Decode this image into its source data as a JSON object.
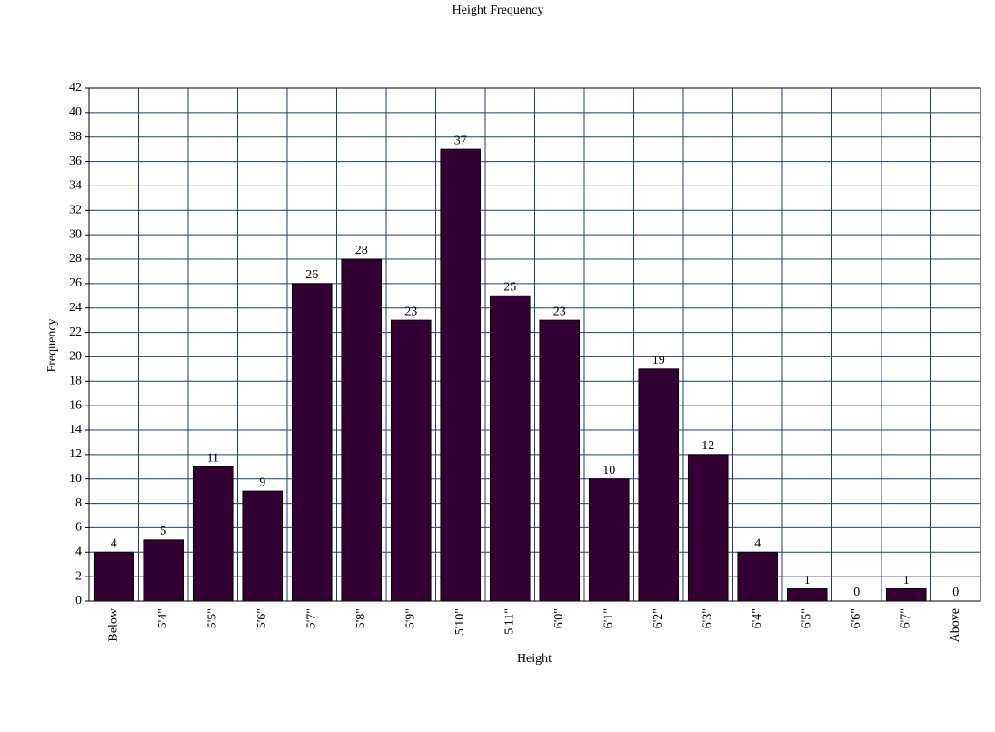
{
  "chart_data": {
    "type": "bar",
    "title": "Height Frequency",
    "x_label": "Height",
    "y_label": "Frequency",
    "categories": [
      "Below",
      "5'4\"",
      "5'5\"",
      "5'6\"",
      "5'7\"",
      "5'8\"",
      "5'9\"",
      "5'10\"",
      "5'11\"",
      "6'0\"",
      "6'1\"",
      "6'2\"",
      "6'3\"",
      "6'4\"",
      "6'5\"",
      "6'6\"",
      "6'7\"",
      "Above"
    ],
    "values": [
      4,
      5,
      11,
      9,
      26,
      28,
      23,
      37,
      25,
      23,
      10,
      19,
      12,
      4,
      1,
      0,
      1,
      0
    ],
    "color": "#330033",
    "ylim": [
      0,
      42
    ],
    "yticks": [
      0,
      2,
      4,
      6,
      8,
      10,
      12,
      14,
      16,
      18,
      20,
      22,
      24,
      26,
      28,
      30,
      32,
      34,
      36,
      38,
      40,
      42
    ],
    "grid": true
  }
}
